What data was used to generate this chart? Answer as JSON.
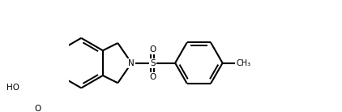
{
  "bg_color": "#ffffff",
  "line_color": "#000000",
  "line_width": 1.5,
  "figsize": [
    4.22,
    1.38
  ],
  "dpi": 100,
  "xlim": [
    -0.5,
    8.5
  ],
  "ylim": [
    -1.5,
    2.5
  ]
}
